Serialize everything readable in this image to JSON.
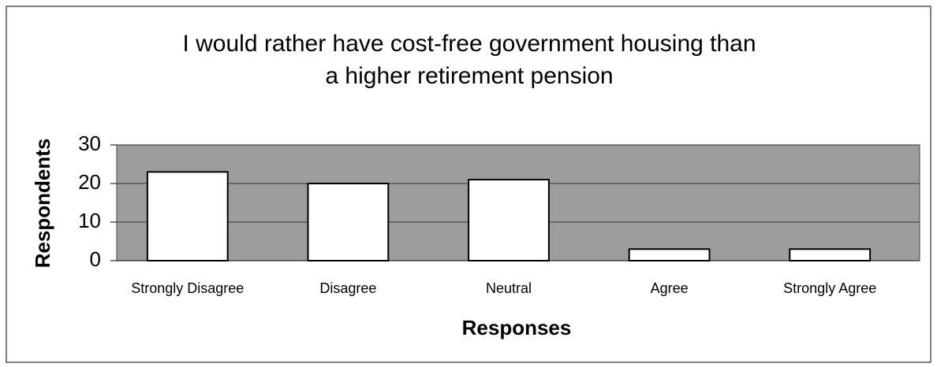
{
  "chart_data": {
    "type": "bar",
    "title": [
      "I would rather have cost-free government housing than",
      "a higher retirement pension"
    ],
    "xlabel": "Responses",
    "ylabel": "Respondents",
    "categories": [
      "Strongly Disagree",
      "Disagree",
      "Neutral",
      "Agree",
      "Strongly Agree"
    ],
    "values": [
      23,
      20,
      21,
      3,
      3
    ],
    "color": "#ffffff",
    "ylim": [
      0,
      30
    ],
    "yticks": [
      0,
      10,
      20,
      30
    ],
    "grid": true
  }
}
